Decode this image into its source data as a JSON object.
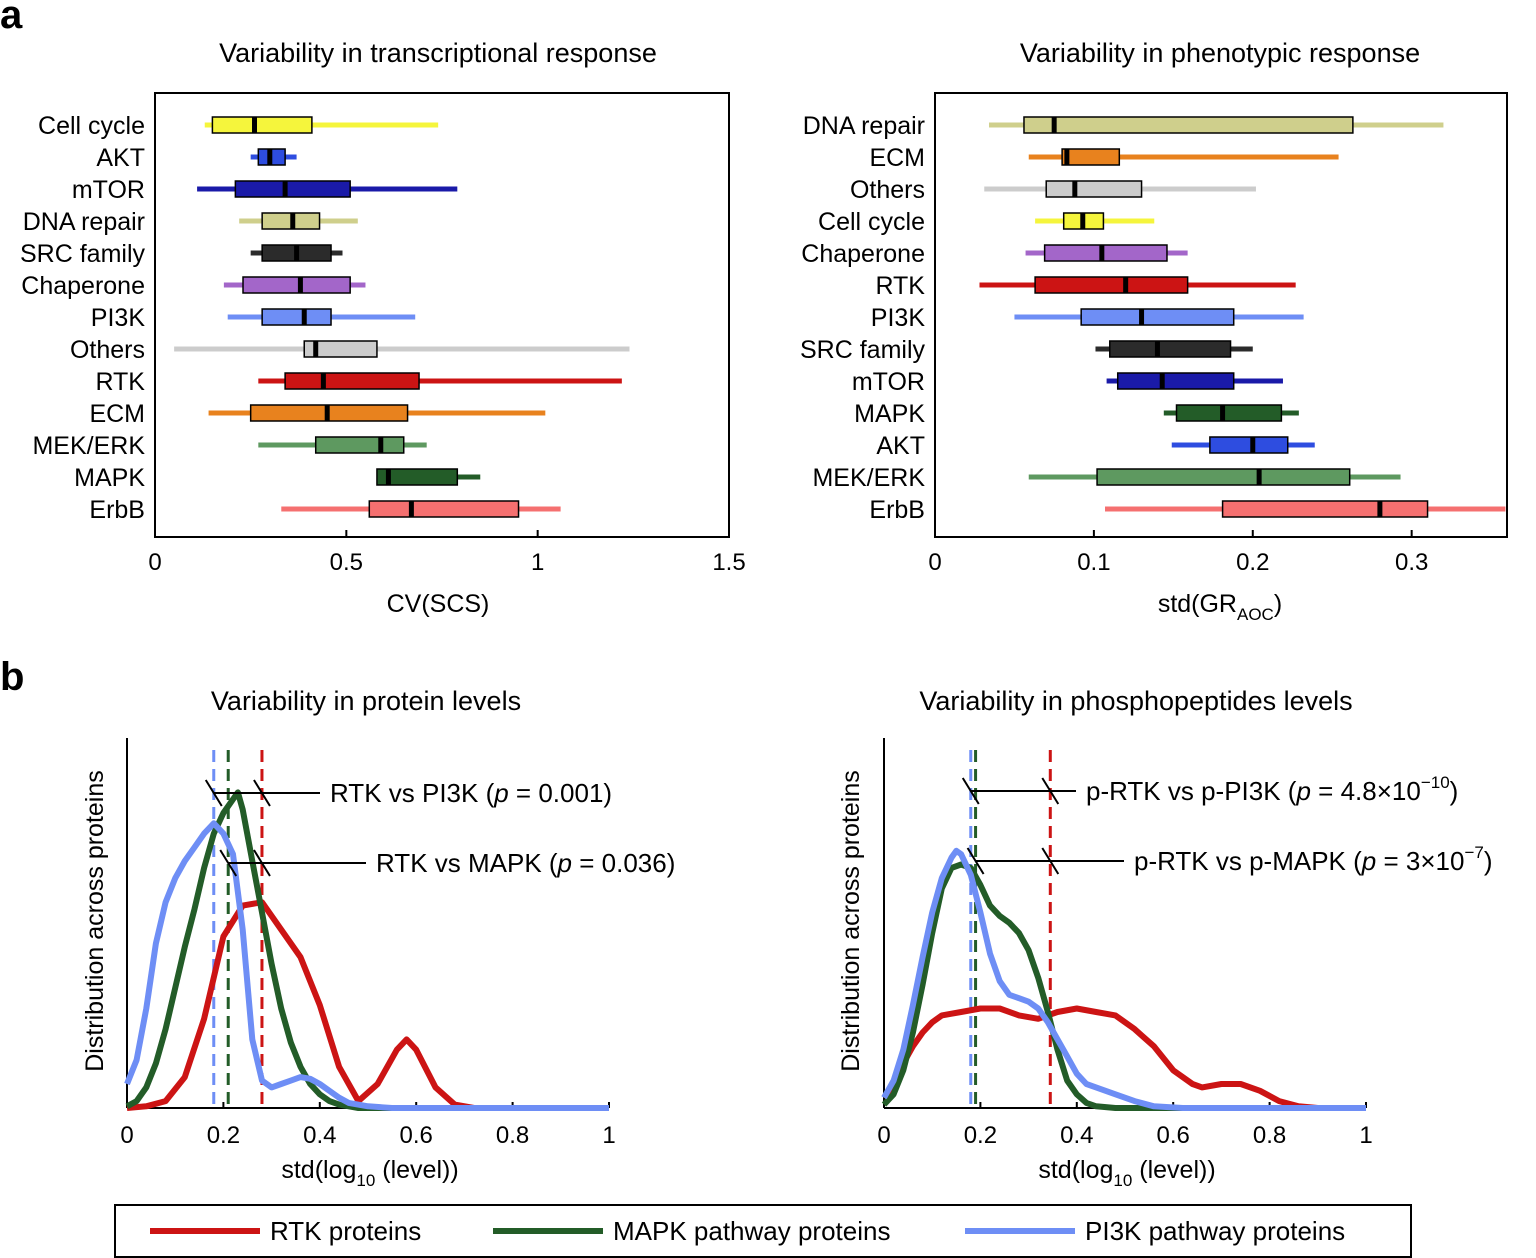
{
  "panel_labels": {
    "a": "a",
    "b": "b"
  },
  "chart_data": [
    {
      "type": "boxplot",
      "title": "Variability in transcriptional response",
      "xlabel": "CV(SCS)",
      "xlim": [
        0,
        1.5
      ],
      "xticks": [
        "0",
        "0.5",
        "1",
        "1.5"
      ],
      "categories": [
        {
          "name": "Cell cycle",
          "color": "#f5f53c",
          "whisker": [
            0.13,
            0.74
          ],
          "box": [
            0.15,
            0.41
          ],
          "median": 0.26
        },
        {
          "name": "AKT",
          "color": "#2e4de0",
          "whisker": [
            0.25,
            0.37
          ],
          "box": [
            0.27,
            0.34
          ],
          "median": 0.3
        },
        {
          "name": "mTOR",
          "color": "#1a1aa8",
          "whisker": [
            0.11,
            0.79
          ],
          "box": [
            0.21,
            0.51
          ],
          "median": 0.34
        },
        {
          "name": "DNA repair",
          "color": "#cfcf8c",
          "whisker": [
            0.22,
            0.53
          ],
          "box": [
            0.28,
            0.43
          ],
          "median": 0.36
        },
        {
          "name": "SRC family",
          "color": "#2b2b2b",
          "whisker": [
            0.25,
            0.49
          ],
          "box": [
            0.28,
            0.46
          ],
          "median": 0.37
        },
        {
          "name": "Chaperone",
          "color": "#a366c9",
          "whisker": [
            0.18,
            0.55
          ],
          "box": [
            0.23,
            0.51
          ],
          "median": 0.38
        },
        {
          "name": "PI3K",
          "color": "#6e8ef5",
          "whisker": [
            0.19,
            0.68
          ],
          "box": [
            0.28,
            0.46
          ],
          "median": 0.39
        },
        {
          "name": "Others",
          "color": "#cccccc",
          "whisker": [
            0.05,
            1.24
          ],
          "box": [
            0.39,
            0.58
          ],
          "median": 0.42
        },
        {
          "name": "RTK",
          "color": "#cc1414",
          "whisker": [
            0.27,
            1.22
          ],
          "box": [
            0.34,
            0.69
          ],
          "median": 0.44
        },
        {
          "name": "ECM",
          "color": "#e8821e",
          "whisker": [
            0.14,
            1.02
          ],
          "box": [
            0.25,
            0.66
          ],
          "median": 0.45
        },
        {
          "name": "MEK/ERK",
          "color": "#5e9960",
          "whisker": [
            0.27,
            0.71
          ],
          "box": [
            0.42,
            0.65
          ],
          "median": 0.59
        },
        {
          "name": "MAPK",
          "color": "#235c28",
          "whisker": [
            0.58,
            0.85
          ],
          "box": [
            0.58,
            0.79
          ],
          "median": 0.61
        },
        {
          "name": "ErbB",
          "color": "#f57070",
          "whisker": [
            0.33,
            1.06
          ],
          "box": [
            0.56,
            0.95
          ],
          "median": 0.67
        }
      ]
    },
    {
      "type": "boxplot",
      "title": "Variability in phenotypic response",
      "xlabel": "std(GR",
      "xlabel_sub": "AOC",
      "xlabel_end": ")",
      "xlim": [
        0,
        0.36
      ],
      "xticks": [
        "0",
        "0.1",
        "0.2",
        "0.3"
      ],
      "xtick_values": [
        0,
        0.1,
        0.2,
        0.3
      ],
      "categories": [
        {
          "name": "DNA repair",
          "color": "#cfcf8c",
          "whisker": [
            0.034,
            0.32
          ],
          "box": [
            0.056,
            0.263
          ],
          "median": 0.075
        },
        {
          "name": "ECM",
          "color": "#e8821e",
          "whisker": [
            0.059,
            0.254
          ],
          "box": [
            0.08,
            0.116
          ],
          "median": 0.083
        },
        {
          "name": "Others",
          "color": "#cccccc",
          "whisker": [
            0.031,
            0.202
          ],
          "box": [
            0.07,
            0.13
          ],
          "median": 0.088
        },
        {
          "name": "Cell cycle",
          "color": "#f5f53c",
          "whisker": [
            0.063,
            0.138
          ],
          "box": [
            0.081,
            0.106
          ],
          "median": 0.093
        },
        {
          "name": "Chaperone",
          "color": "#a366c9",
          "whisker": [
            0.057,
            0.159
          ],
          "box": [
            0.069,
            0.146
          ],
          "median": 0.105
        },
        {
          "name": "RTK",
          "color": "#cc1414",
          "whisker": [
            0.028,
            0.227
          ],
          "box": [
            0.063,
            0.159
          ],
          "median": 0.12
        },
        {
          "name": "PI3K",
          "color": "#6e8ef5",
          "whisker": [
            0.05,
            0.232
          ],
          "box": [
            0.092,
            0.188
          ],
          "median": 0.13
        },
        {
          "name": "SRC family",
          "color": "#2b2b2b",
          "whisker": [
            0.101,
            0.2
          ],
          "box": [
            0.11,
            0.186
          ],
          "median": 0.14
        },
        {
          "name": "mTOR",
          "color": "#1a1aa8",
          "whisker": [
            0.108,
            0.219
          ],
          "box": [
            0.115,
            0.188
          ],
          "median": 0.143
        },
        {
          "name": "MAPK",
          "color": "#235c28",
          "whisker": [
            0.144,
            0.229
          ],
          "box": [
            0.152,
            0.218
          ],
          "median": 0.181
        },
        {
          "name": "AKT",
          "color": "#2e4de0",
          "whisker": [
            0.149,
            0.239
          ],
          "box": [
            0.173,
            0.222
          ],
          "median": 0.2
        },
        {
          "name": "MEK/ERK",
          "color": "#5e9960",
          "whisker": [
            0.059,
            0.293
          ],
          "box": [
            0.102,
            0.261
          ],
          "median": 0.204
        },
        {
          "name": "ErbB",
          "color": "#f57070",
          "whisker": [
            0.107,
            0.359
          ],
          "box": [
            0.181,
            0.31
          ],
          "median": 0.28
        }
      ]
    },
    {
      "type": "line",
      "title": "Variability in protein levels",
      "xlabel": "std(log",
      "xlabel_sub": "10",
      "xlabel_end": " (level))",
      "ylabel": "Distribution across proteins",
      "xlim": [
        0,
        1
      ],
      "xticks": [
        "0",
        "0.2",
        "0.4",
        "0.6",
        "0.8",
        "1"
      ],
      "series": [
        {
          "key": "rtk",
          "color": "#cc1414",
          "mean": 0.28,
          "x": [
            0,
            0.04,
            0.08,
            0.12,
            0.16,
            0.2,
            0.24,
            0.28,
            0.32,
            0.36,
            0.4,
            0.44,
            0.48,
            0.52,
            0.56,
            0.58,
            0.6,
            0.64,
            0.68,
            0.72,
            0.8,
            1.0
          ],
          "y": [
            0,
            0.005,
            0.02,
            0.09,
            0.26,
            0.5,
            0.59,
            0.6,
            0.52,
            0.44,
            0.3,
            0.12,
            0.02,
            0.07,
            0.17,
            0.2,
            0.17,
            0.06,
            0.01,
            0,
            0,
            0
          ]
        },
        {
          "key": "mapk",
          "color": "#235c28",
          "mean": 0.21,
          "x": [
            0,
            0.02,
            0.04,
            0.06,
            0.08,
            0.1,
            0.12,
            0.14,
            0.16,
            0.18,
            0.2,
            0.22,
            0.23,
            0.24,
            0.26,
            0.28,
            0.3,
            0.32,
            0.34,
            0.36,
            0.38,
            0.4,
            0.42,
            0.44,
            0.48,
            0.52,
            1.0
          ],
          "y": [
            0.005,
            0.02,
            0.06,
            0.13,
            0.23,
            0.35,
            0.47,
            0.58,
            0.7,
            0.8,
            0.86,
            0.9,
            0.92,
            0.87,
            0.72,
            0.57,
            0.42,
            0.29,
            0.19,
            0.12,
            0.07,
            0.04,
            0.02,
            0.01,
            0,
            0,
            0
          ]
        },
        {
          "key": "pi3k",
          "color": "#6e8ef5",
          "mean": 0.18,
          "x": [
            0,
            0.02,
            0.04,
            0.06,
            0.08,
            0.1,
            0.12,
            0.14,
            0.16,
            0.18,
            0.2,
            0.22,
            0.24,
            0.26,
            0.28,
            0.3,
            0.32,
            0.34,
            0.36,
            0.38,
            0.4,
            0.42,
            0.44,
            0.46,
            0.5,
            0.55,
            0.6,
            1.0
          ],
          "y": [
            0.07,
            0.14,
            0.29,
            0.48,
            0.6,
            0.67,
            0.72,
            0.76,
            0.8,
            0.83,
            0.8,
            0.74,
            0.52,
            0.2,
            0.08,
            0.06,
            0.07,
            0.08,
            0.09,
            0.085,
            0.07,
            0.05,
            0.03,
            0.015,
            0.005,
            0,
            0,
            0
          ]
        }
      ],
      "annotations": [
        {
          "text_pre": "RTK vs PI3K (",
          "p": "p",
          "text_post": " = 0.001)",
          "x1": 0.18,
          "x2": 0.28
        },
        {
          "text_pre": "RTK vs MAPK (",
          "p": "p",
          "text_post": " = 0.036)",
          "x1": 0.21,
          "x2": 0.28
        }
      ]
    },
    {
      "type": "line",
      "title": "Variability in phosphopeptides levels",
      "xlabel": "std(log",
      "xlabel_sub": "10",
      "xlabel_end": " (level))",
      "ylabel": "Distribution across proteins",
      "xlim": [
        0,
        1
      ],
      "xticks": [
        "0",
        "0.2",
        "0.4",
        "0.6",
        "0.8",
        "1"
      ],
      "series": [
        {
          "key": "rtk",
          "color": "#cc1414",
          "mean": 0.345,
          "x": [
            0,
            0.02,
            0.04,
            0.06,
            0.08,
            0.1,
            0.12,
            0.16,
            0.2,
            0.24,
            0.28,
            0.32,
            0.36,
            0.4,
            0.44,
            0.48,
            0.52,
            0.56,
            0.6,
            0.64,
            0.66,
            0.7,
            0.74,
            0.78,
            0.82,
            0.86,
            0.9,
            1.0
          ],
          "y": [
            0.03,
            0.07,
            0.13,
            0.18,
            0.22,
            0.25,
            0.27,
            0.28,
            0.29,
            0.29,
            0.27,
            0.26,
            0.28,
            0.29,
            0.28,
            0.27,
            0.23,
            0.18,
            0.11,
            0.07,
            0.06,
            0.07,
            0.07,
            0.05,
            0.02,
            0.005,
            0,
            0
          ]
        },
        {
          "key": "mapk",
          "color": "#235c28",
          "mean": 0.19,
          "x": [
            0,
            0.02,
            0.04,
            0.06,
            0.08,
            0.1,
            0.12,
            0.14,
            0.16,
            0.18,
            0.2,
            0.22,
            0.24,
            0.26,
            0.28,
            0.3,
            0.32,
            0.34,
            0.36,
            0.38,
            0.4,
            0.42,
            0.44,
            0.48,
            0.52,
            1.0
          ],
          "y": [
            0.01,
            0.04,
            0.11,
            0.22,
            0.36,
            0.51,
            0.64,
            0.7,
            0.71,
            0.7,
            0.65,
            0.59,
            0.56,
            0.54,
            0.51,
            0.46,
            0.38,
            0.28,
            0.17,
            0.08,
            0.04,
            0.015,
            0.005,
            0,
            0,
            0
          ]
        },
        {
          "key": "pi3k",
          "color": "#6e8ef5",
          "mean": 0.18,
          "x": [
            0,
            0.02,
            0.04,
            0.06,
            0.08,
            0.1,
            0.12,
            0.14,
            0.15,
            0.16,
            0.18,
            0.2,
            0.22,
            0.24,
            0.26,
            0.28,
            0.3,
            0.32,
            0.34,
            0.36,
            0.38,
            0.4,
            0.42,
            0.44,
            0.48,
            0.52,
            0.56,
            0.62,
            1.0
          ],
          "y": [
            0.03,
            0.08,
            0.17,
            0.3,
            0.44,
            0.57,
            0.67,
            0.73,
            0.75,
            0.74,
            0.68,
            0.57,
            0.45,
            0.37,
            0.33,
            0.32,
            0.31,
            0.29,
            0.25,
            0.2,
            0.15,
            0.1,
            0.07,
            0.06,
            0.04,
            0.02,
            0.005,
            0,
            0
          ]
        }
      ],
      "annotations": [
        {
          "text_pre": "p-RTK vs p-PI3K (",
          "p": "p",
          "text_post": " = 4.8×10",
          "sup": "−10",
          "close": ")",
          "x1": 0.18,
          "x2": 0.345
        },
        {
          "text_pre": "p-RTK vs p-MAPK (",
          "p": "p",
          "text_post": " = 3×10",
          "sup": "−7",
          "close": ")",
          "x1": 0.19,
          "x2": 0.345
        }
      ]
    }
  ],
  "legend": {
    "items": [
      {
        "label": "RTK proteins",
        "color": "#cc1414"
      },
      {
        "label": "MAPK pathway proteins",
        "color": "#235c28"
      },
      {
        "label": "PI3K pathway proteins",
        "color": "#6e8ef5"
      }
    ]
  }
}
